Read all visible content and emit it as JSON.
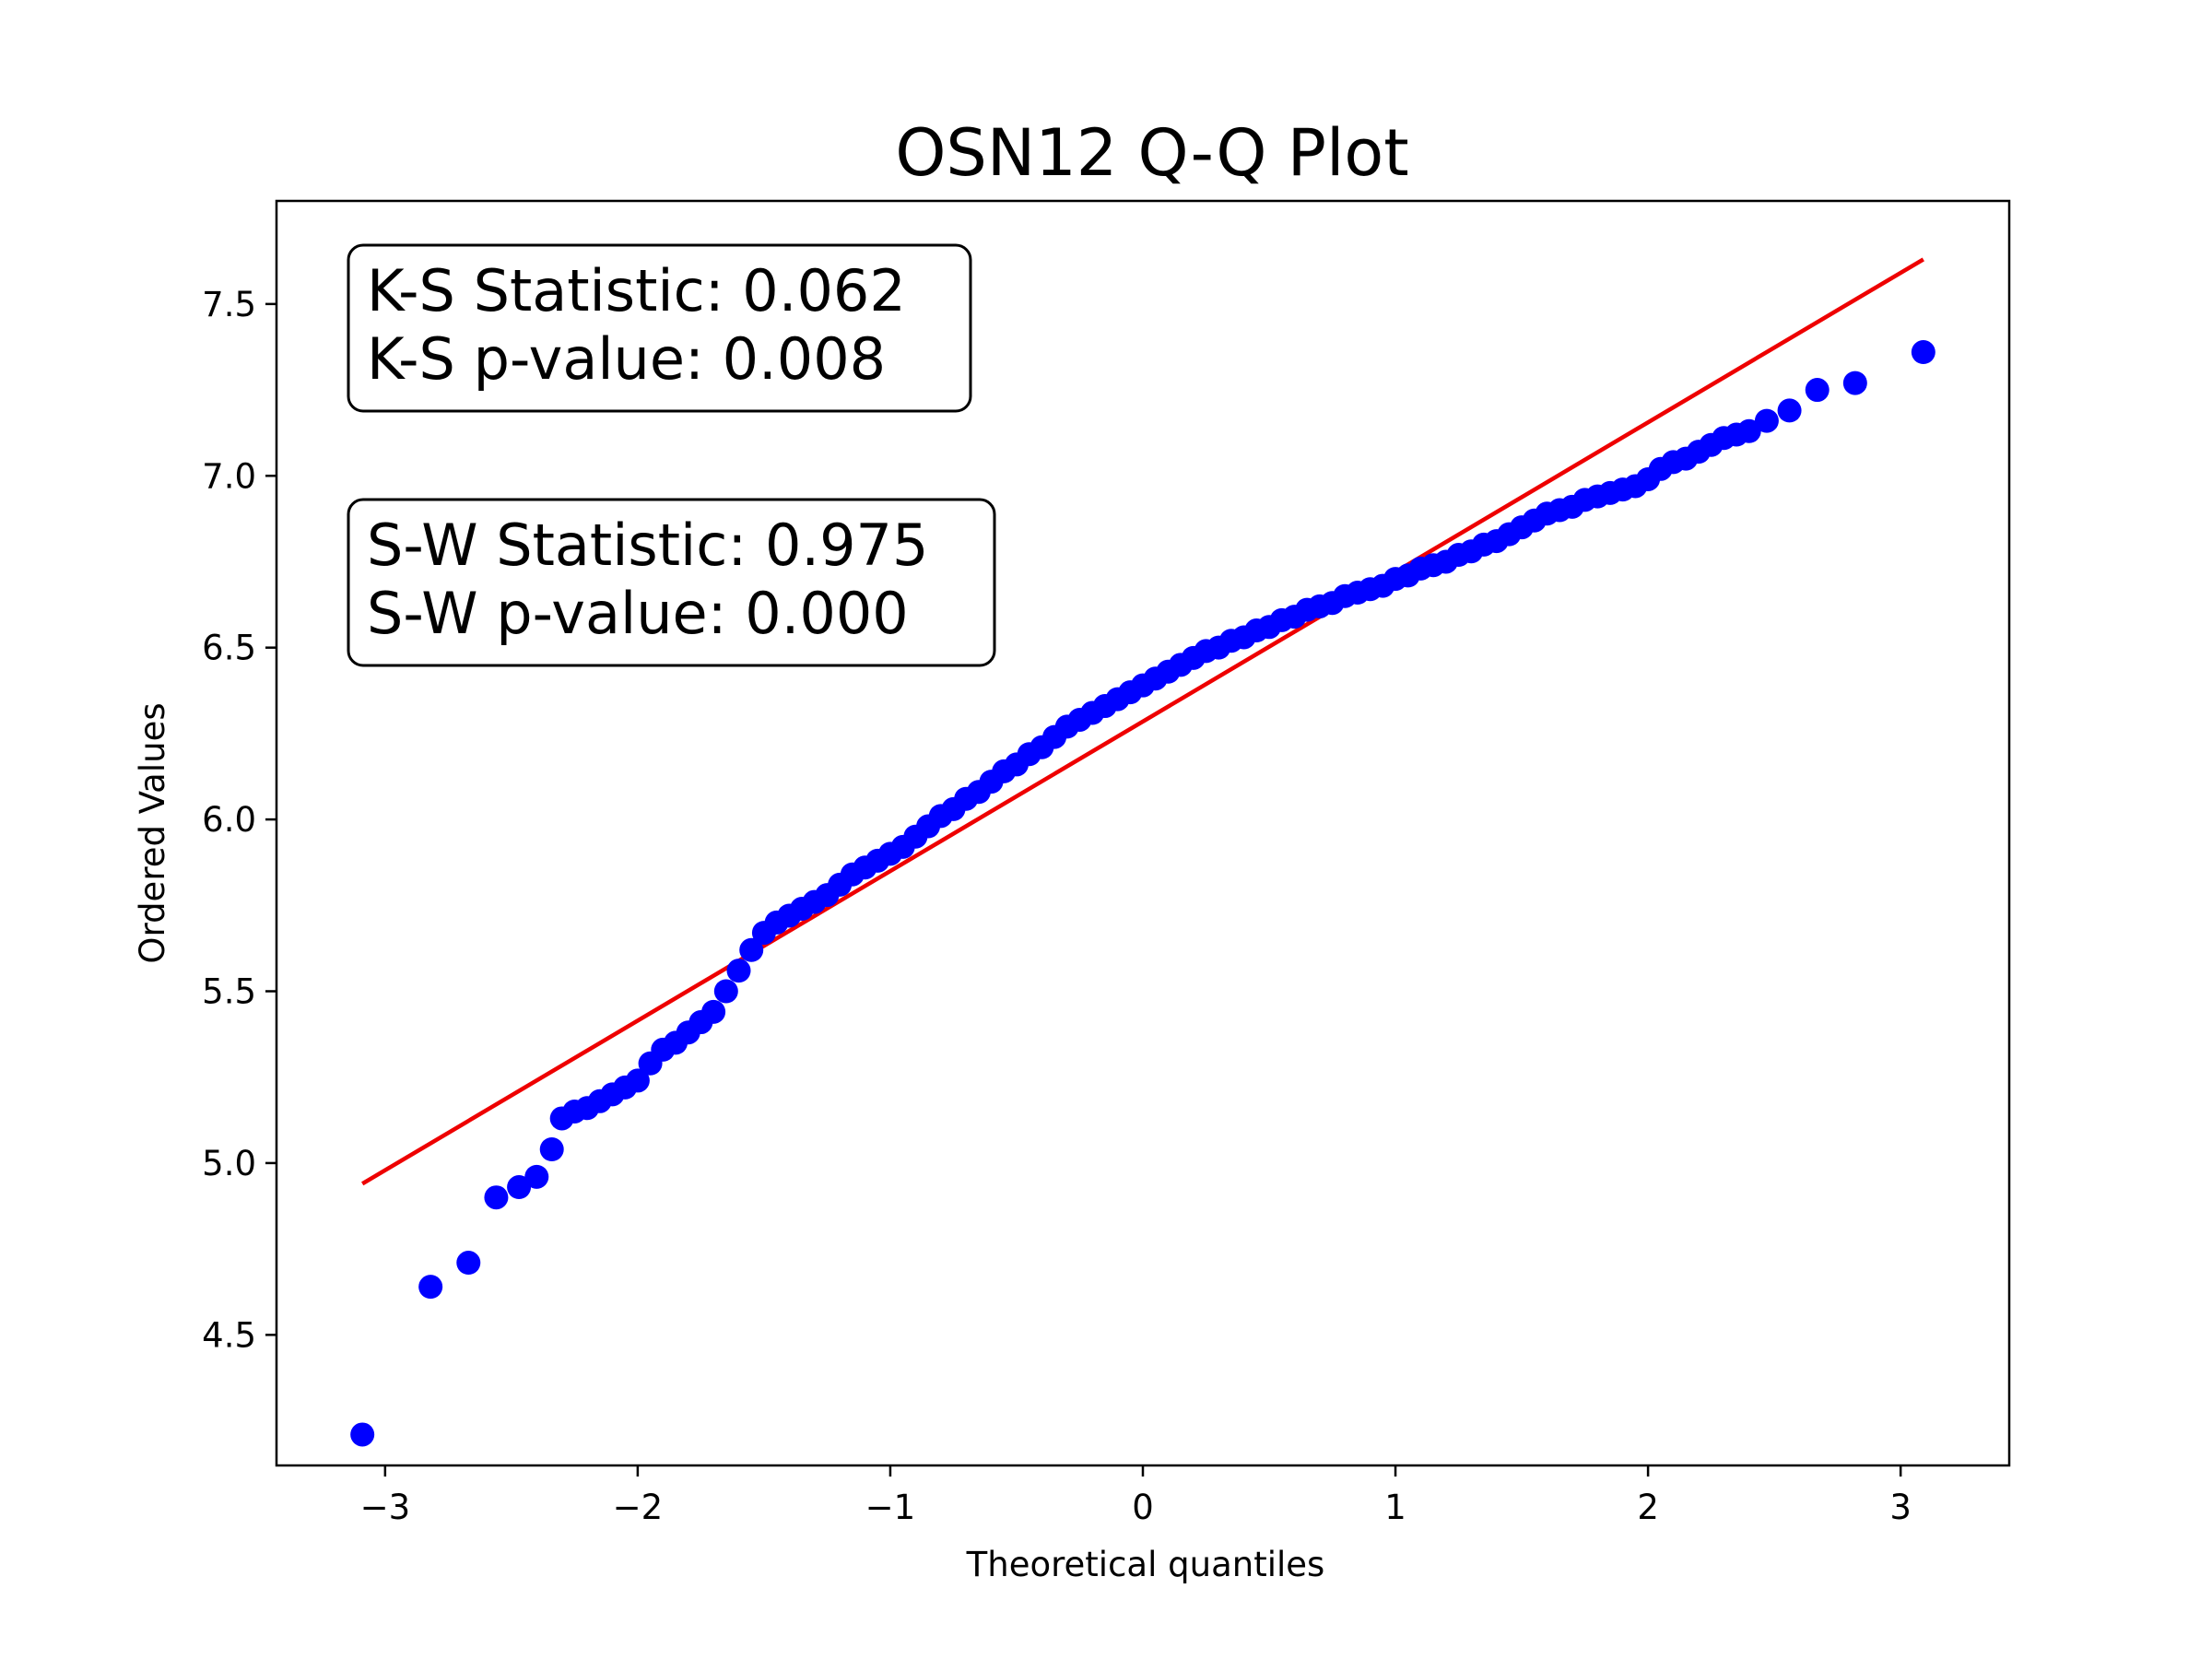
{
  "chart_data": {
    "type": "scatter",
    "title": "OSN12 Q-Q Plot",
    "xlabel": "Theoretical quantiles",
    "ylabel": "Ordered Values",
    "xlim": [
      -3.43,
      3.43
    ],
    "ylim": [
      4.12,
      7.8
    ],
    "grid": false,
    "x_ticks": [
      -3,
      -2,
      -1,
      0,
      1,
      2,
      3
    ],
    "x_tick_labels": [
      "−3",
      "−2",
      "−1",
      "0",
      "1",
      "2",
      "3"
    ],
    "y_ticks": [
      4.5,
      5.0,
      5.5,
      6.0,
      6.5,
      7.0,
      7.5
    ],
    "y_tick_labels": [
      "4.5",
      "5.0",
      "5.5",
      "6.0",
      "6.5",
      "7.0",
      "7.5"
    ],
    "annotations": [
      {
        "lines": [
          "K-S Statistic: 0.062",
          "K-S p-value: 0.008"
        ]
      },
      {
        "lines": [
          "S-W Statistic: 0.975",
          "S-W p-value: 0.000"
        ]
      }
    ],
    "series": [
      {
        "kind": "points",
        "color": "#0000ff",
        "x": [
          -3.09,
          -2.82,
          -2.67,
          -2.56,
          -2.47,
          -2.4,
          -2.34,
          -2.3,
          -2.25,
          -2.2,
          -2.15,
          -2.1,
          -2.05,
          -2.0,
          -1.95,
          -1.9,
          -1.85,
          -1.8,
          -1.75,
          -1.7,
          -1.65,
          -1.6,
          -1.55,
          -1.5,
          -1.45,
          -1.4,
          -1.35,
          -1.3,
          -1.25,
          -1.2,
          -1.15,
          -1.1,
          -1.05,
          -1.0,
          -0.95,
          -0.9,
          -0.85,
          -0.8,
          -0.75,
          -0.7,
          -0.65,
          -0.6,
          -0.55,
          -0.5,
          -0.45,
          -0.4,
          -0.35,
          -0.3,
          -0.25,
          -0.2,
          -0.15,
          -0.1,
          -0.05,
          0.0,
          0.05,
          0.1,
          0.15,
          0.2,
          0.25,
          0.3,
          0.35,
          0.4,
          0.45,
          0.5,
          0.55,
          0.6,
          0.65,
          0.7,
          0.75,
          0.8,
          0.85,
          0.9,
          0.95,
          1.0,
          1.05,
          1.1,
          1.15,
          1.2,
          1.25,
          1.3,
          1.35,
          1.4,
          1.45,
          1.5,
          1.55,
          1.6,
          1.65,
          1.7,
          1.75,
          1.8,
          1.85,
          1.9,
          1.95,
          2.0,
          2.05,
          2.1,
          2.15,
          2.2,
          2.25,
          2.3,
          2.35,
          2.4,
          2.47,
          2.56,
          2.67,
          2.82,
          3.09
        ],
        "y": [
          4.21,
          4.64,
          4.71,
          4.9,
          4.93,
          4.96,
          5.04,
          5.13,
          5.15,
          5.16,
          5.18,
          5.2,
          5.22,
          5.24,
          5.29,
          5.33,
          5.35,
          5.38,
          5.41,
          5.44,
          5.5,
          5.56,
          5.62,
          5.67,
          5.7,
          5.72,
          5.74,
          5.76,
          5.78,
          5.81,
          5.84,
          5.86,
          5.88,
          5.9,
          5.92,
          5.95,
          5.98,
          6.01,
          6.03,
          6.06,
          6.08,
          6.11,
          6.14,
          6.16,
          6.19,
          6.21,
          6.24,
          6.27,
          6.29,
          6.31,
          6.33,
          6.35,
          6.37,
          6.39,
          6.41,
          6.43,
          6.45,
          6.47,
          6.49,
          6.5,
          6.52,
          6.53,
          6.55,
          6.56,
          6.58,
          6.59,
          6.61,
          6.62,
          6.63,
          6.65,
          6.66,
          6.67,
          6.68,
          6.7,
          6.71,
          6.73,
          6.74,
          6.75,
          6.77,
          6.78,
          6.8,
          6.81,
          6.83,
          6.85,
          6.87,
          6.89,
          6.9,
          6.91,
          6.93,
          6.94,
          6.95,
          6.96,
          6.97,
          6.99,
          7.02,
          7.04,
          7.05,
          7.07,
          7.09,
          7.11,
          7.12,
          7.13,
          7.16,
          7.19,
          7.25,
          7.27,
          7.36
        ]
      },
      {
        "kind": "line",
        "color": "#ee0000",
        "x": [
          -3.09,
          3.09
        ],
        "y": [
          4.94,
          7.63
        ]
      }
    ]
  }
}
